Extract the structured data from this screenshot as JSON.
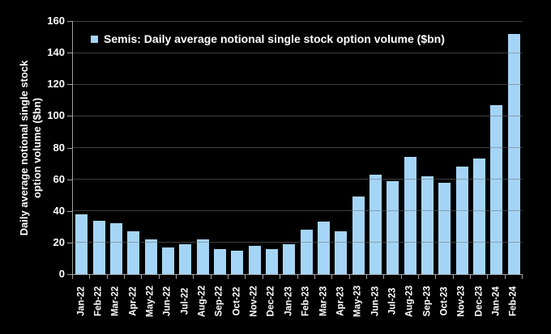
{
  "chart_data": {
    "type": "bar",
    "legend": "Semis: Daily average notional single stock option volume ($bn)",
    "ylabel": "Daily average notional single stock option volume ($bn)",
    "ylabel_lines": [
      "Daily average notional single stock",
      "option volume ($bn)"
    ],
    "categories": [
      "Jan-22",
      "Feb-22",
      "Mar-22",
      "Apr-22",
      "May-22",
      "Jun-22",
      "Jul-22",
      "Aug-22",
      "Sep-22",
      "Oct-22",
      "Nov-22",
      "Dec-22",
      "Jan-23",
      "Feb-23",
      "Mar-23",
      "Apr-23",
      "May-23",
      "Jun-23",
      "Jul-23",
      "Aug-23",
      "Sep-23",
      "Oct-23",
      "Nov-23",
      "Dec-23",
      "Jan-24",
      "Feb-24"
    ],
    "values": [
      38,
      34,
      32,
      27,
      22,
      17,
      19,
      22,
      16,
      15,
      18,
      16,
      19,
      28,
      33,
      27,
      49,
      63,
      59,
      74,
      62,
      58,
      68,
      73,
      107,
      152
    ],
    "ylim": [
      0,
      160
    ],
    "yticks": [
      0,
      20,
      40,
      60,
      80,
      100,
      120,
      140,
      160
    ],
    "grid": true,
    "legend_position": "top-left",
    "colors": {
      "bar": "#A5D5F6",
      "background": "#000000",
      "text": "#FFFFFF",
      "gridline": "#3C3C3C",
      "axis": "#A0A0A0"
    }
  }
}
